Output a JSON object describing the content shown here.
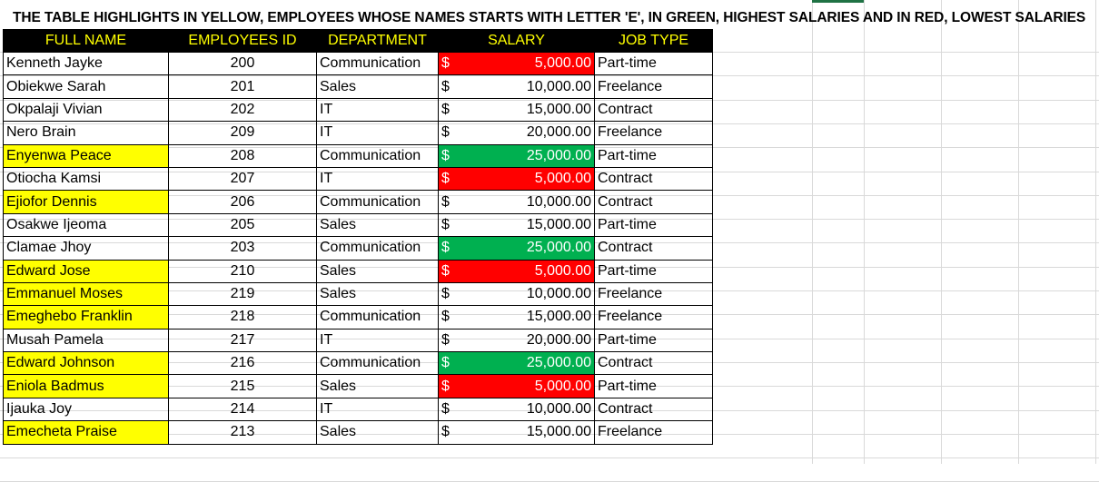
{
  "title": "THE TABLE HIGHLIGHTS IN YELLOW, EMPLOYEES WHOSE NAMES STARTS WITH LETTER 'E', IN GREEN, HIGHEST SALARIES AND IN RED, LOWEST SALARIES",
  "headers": {
    "name": "FULL NAME",
    "id": "EMPLOYEES ID",
    "dept": "DEPARTMENT",
    "salary": "SALARY",
    "job": "JOB TYPE"
  },
  "currency_symbol": "$",
  "colors": {
    "yellow": "#ffff00",
    "green": "#00b050",
    "red": "#ff0000",
    "header_bg": "#000000",
    "header_text": "#ffff00"
  },
  "rows": [
    {
      "name": "Kenneth Jayke",
      "id": "200",
      "dept": "Communication",
      "salary": "5,000.00",
      "job": "Part-time",
      "name_hl": false,
      "salary_hl": "red"
    },
    {
      "name": "Obiekwe Sarah",
      "id": "201",
      "dept": "Sales",
      "salary": "10,000.00",
      "job": "Freelance",
      "name_hl": false,
      "salary_hl": ""
    },
    {
      "name": "Okpalaji Vivian",
      "id": "202",
      "dept": "IT",
      "salary": "15,000.00",
      "job": "Contract",
      "name_hl": false,
      "salary_hl": ""
    },
    {
      "name": "Nero Brain",
      "id": "209",
      "dept": "IT",
      "salary": "20,000.00",
      "job": "Freelance",
      "name_hl": false,
      "salary_hl": ""
    },
    {
      "name": "Enyenwa Peace",
      "id": "208",
      "dept": "Communication",
      "salary": "25,000.00",
      "job": "Part-time",
      "name_hl": true,
      "salary_hl": "green"
    },
    {
      "name": "Otiocha Kamsi",
      "id": "207",
      "dept": "IT",
      "salary": "5,000.00",
      "job": "Contract",
      "name_hl": false,
      "salary_hl": "red"
    },
    {
      "name": "Ejiofor Dennis",
      "id": "206",
      "dept": "Communication",
      "salary": "10,000.00",
      "job": "Contract",
      "name_hl": true,
      "salary_hl": ""
    },
    {
      "name": "Osakwe Ijeoma",
      "id": "205",
      "dept": "Sales",
      "salary": "15,000.00",
      "job": "Part-time",
      "name_hl": false,
      "salary_hl": ""
    },
    {
      "name": "Clamae Jhoy",
      "id": "203",
      "dept": "Communication",
      "salary": "25,000.00",
      "job": "Contract",
      "name_hl": false,
      "salary_hl": "green"
    },
    {
      "name": "Edward Jose",
      "id": "210",
      "dept": "Sales",
      "salary": "5,000.00",
      "job": "Part-time",
      "name_hl": true,
      "salary_hl": "red"
    },
    {
      "name": "Emmanuel Moses",
      "id": "219",
      "dept": "Sales",
      "salary": "10,000.00",
      "job": "Freelance",
      "name_hl": true,
      "salary_hl": ""
    },
    {
      "name": "Emeghebo Franklin",
      "id": "218",
      "dept": "Communication",
      "salary": "15,000.00",
      "job": "Freelance",
      "name_hl": true,
      "salary_hl": ""
    },
    {
      "name": "Musah Pamela",
      "id": "217",
      "dept": "IT",
      "salary": "20,000.00",
      "job": "Part-time",
      "name_hl": false,
      "salary_hl": ""
    },
    {
      "name": "Edward Johnson",
      "id": "216",
      "dept": "Communication",
      "salary": "25,000.00",
      "job": "Contract",
      "name_hl": true,
      "salary_hl": "green"
    },
    {
      "name": "Eniola Badmus",
      "id": "215",
      "dept": "Sales",
      "salary": "5,000.00",
      "job": "Part-time",
      "name_hl": true,
      "salary_hl": "red"
    },
    {
      "name": "Ijauka Joy",
      "id": "214",
      "dept": "IT",
      "salary": "10,000.00",
      "job": "Contract",
      "name_hl": false,
      "salary_hl": ""
    },
    {
      "name": "Emecheta Praise",
      "id": "213",
      "dept": "Sales",
      "salary": "15,000.00",
      "job": "Freelance",
      "name_hl": true,
      "salary_hl": ""
    }
  ]
}
